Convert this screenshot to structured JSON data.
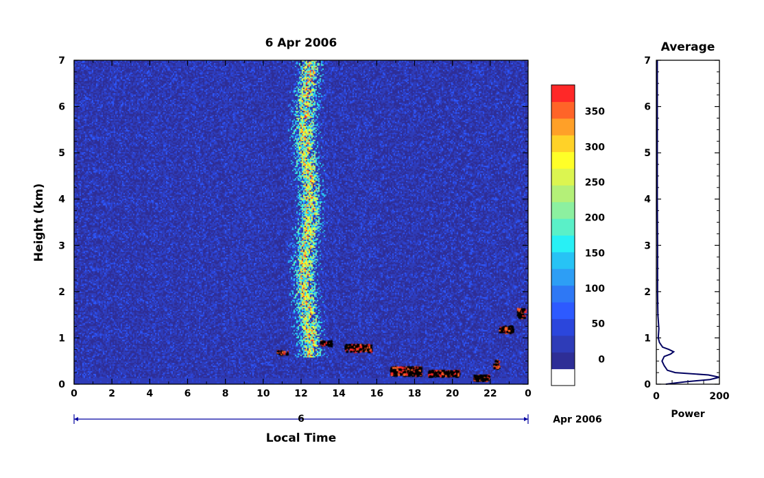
{
  "chart_data": [
    {
      "type": "heatmap",
      "title": "6 Apr 2006",
      "xlabel": "Local Time",
      "ylabel": "Height (km)",
      "xlim": [
        0,
        24
      ],
      "ylim": [
        0,
        7
      ],
      "xticks": [
        "0",
        "2",
        "4",
        "6",
        "8",
        "10",
        "12",
        "14",
        "16",
        "18",
        "20",
        "22",
        "0"
      ],
      "yticks": [
        "0",
        "1",
        "2",
        "3",
        "4",
        "5",
        "6",
        "7"
      ],
      "date_axis": {
        "day_label": "6",
        "month_label": "Apr 2006"
      },
      "colorbar": {
        "ticks": [
          "0",
          "50",
          "100",
          "150",
          "200",
          "250",
          "300",
          "350"
        ],
        "levels": [
          -25,
          0,
          25,
          50,
          75,
          100,
          125,
          150,
          175,
          200,
          225,
          250,
          275,
          300,
          325,
          350,
          375
        ],
        "colors": [
          "#ffffff",
          "#2e2e96",
          "#2e3cb8",
          "#2b46dc",
          "#2d5aff",
          "#2e78f5",
          "#2d9ef5",
          "#27c3f5",
          "#28f0f5",
          "#5af0c8",
          "#8cf0a0",
          "#b4f078",
          "#dcf550",
          "#ffff28",
          "#ffd228",
          "#ffa028",
          "#ff6428",
          "#ff2828"
        ]
      },
      "features": [
        {
          "name": "surface_layer",
          "height_km": [
            0,
            0.15
          ],
          "time_h": [
            0,
            24
          ],
          "power": [
            0,
            25
          ]
        },
        {
          "name": "convective_plume",
          "time_h": [
            11,
            14
          ],
          "center_h": 12.3,
          "height_km": [
            0.6,
            7
          ],
          "power": [
            150,
            375
          ]
        },
        {
          "name": "low_cloud_returns",
          "time_h": [
            10.5,
            24
          ],
          "height_km": [
            0.1,
            1.7
          ]
        }
      ]
    },
    {
      "type": "line",
      "title": "Average",
      "xlabel": "Power",
      "xlim": [
        0,
        200
      ],
      "ylim": [
        0,
        7
      ],
      "xticks": [
        "0",
        "200"
      ],
      "yticks": [
        "0",
        "1",
        "2",
        "3",
        "4",
        "5",
        "6",
        "7"
      ],
      "series": [
        {
          "height": [
            0.0,
            0.05,
            0.1,
            0.15,
            0.2,
            0.25,
            0.3,
            0.4,
            0.5,
            0.6,
            0.65,
            0.7,
            0.75,
            0.8,
            0.9,
            1.0,
            1.2,
            1.5,
            2.0,
            2.5,
            3.0,
            4.0,
            5.0,
            6.0,
            7.0
          ],
          "power": [
            30,
            90,
            170,
            200,
            165,
            60,
            35,
            25,
            18,
            25,
            45,
            55,
            40,
            20,
            10,
            6,
            8,
            5,
            4,
            4,
            4,
            3,
            3,
            3,
            3
          ]
        }
      ]
    }
  ]
}
